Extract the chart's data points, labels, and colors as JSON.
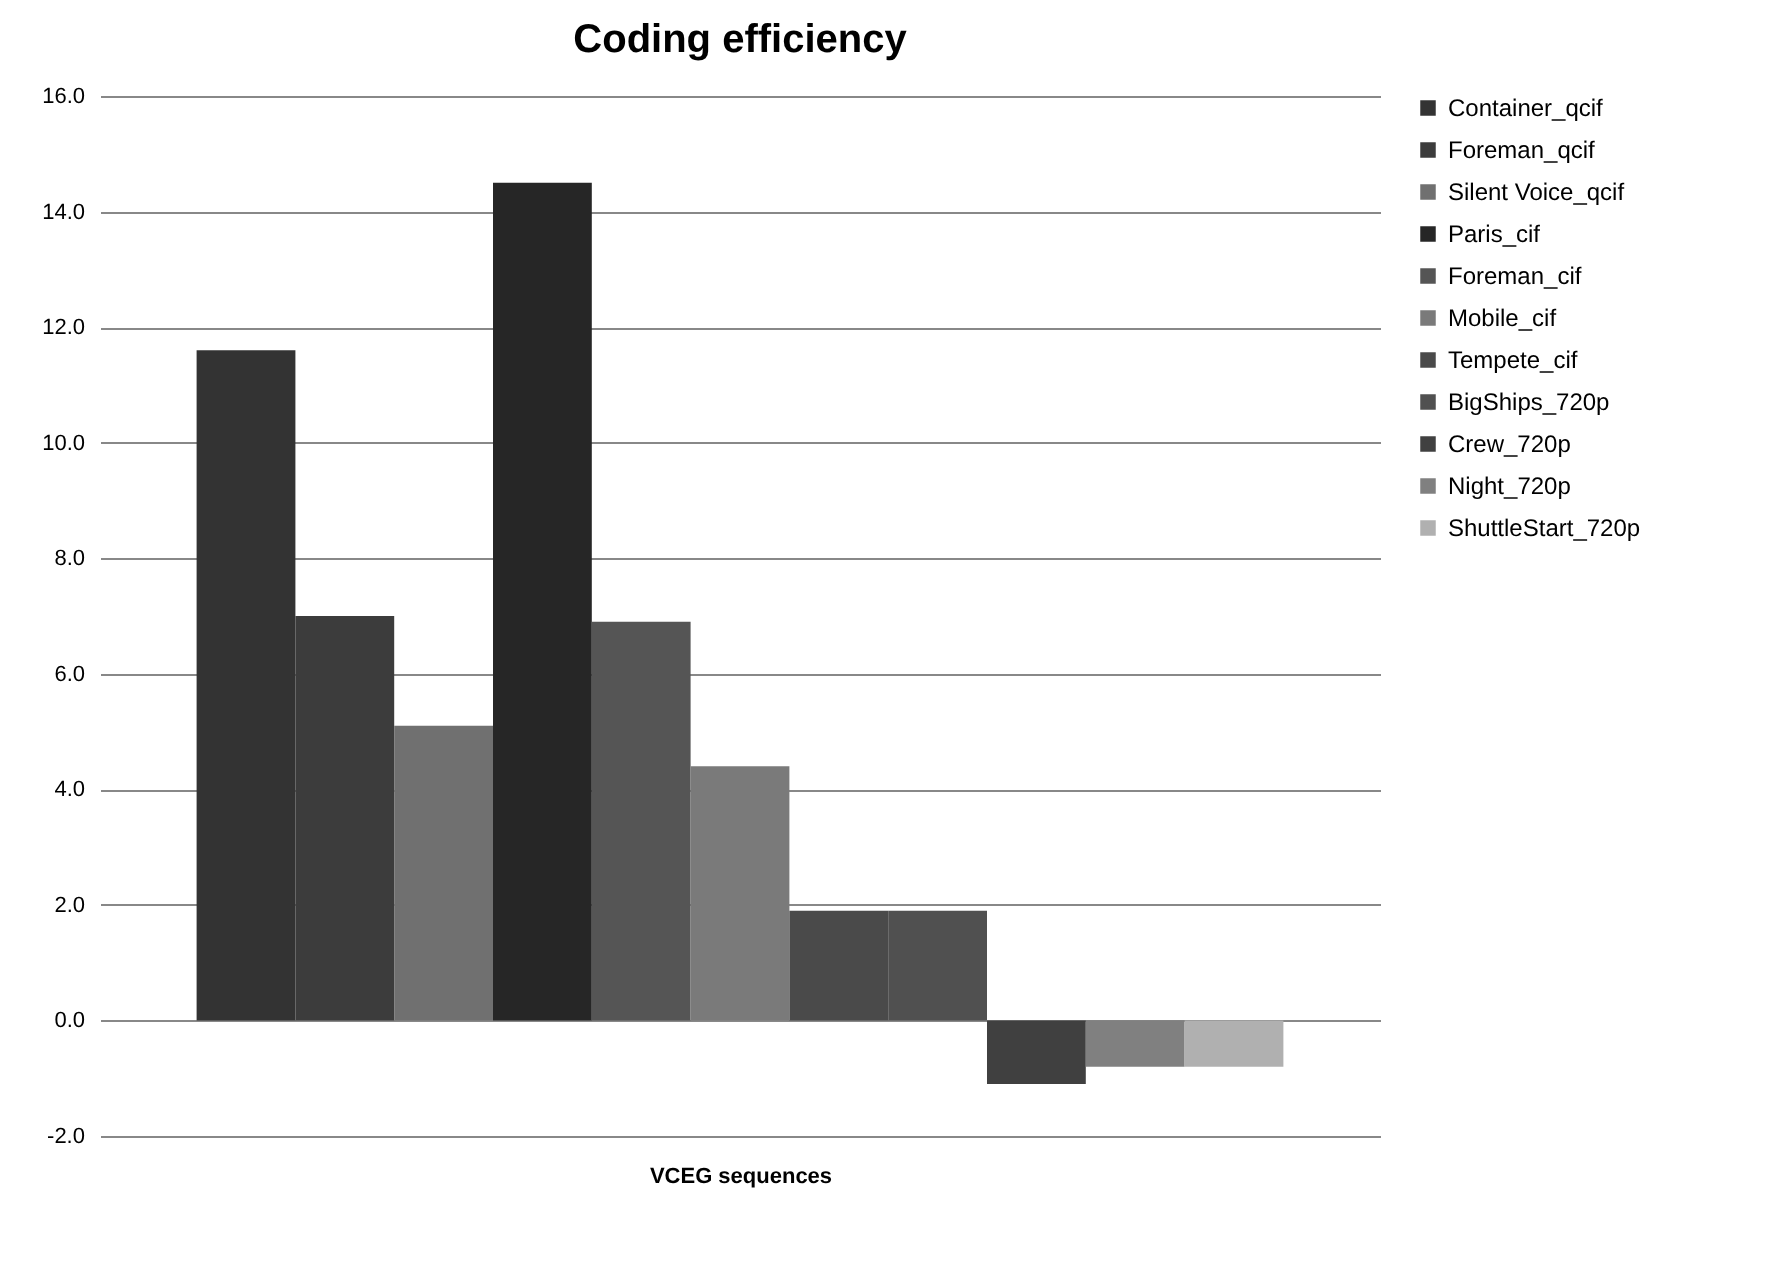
{
  "chart_data": {
    "type": "bar",
    "title": "Coding efficiency",
    "xlabel": "VCEG sequences",
    "categories": [
      null
    ],
    "series": [
      {
        "name": "Container_qcif",
        "color": "#333333",
        "values": [
          11.6
        ]
      },
      {
        "name": "Foreman_qcif",
        "color": "#3c3c3c",
        "values": [
          7.0
        ]
      },
      {
        "name": "Silent Voice_qcif",
        "color": "#707070",
        "values": [
          5.1
        ]
      },
      {
        "name": "Paris_cif",
        "color": "#262626",
        "values": [
          14.5
        ]
      },
      {
        "name": "Foreman_cif",
        "color": "#555555",
        "values": [
          6.9
        ]
      },
      {
        "name": "Mobile_cif",
        "color": "#7a7a7a",
        "values": [
          4.4
        ]
      },
      {
        "name": "Tempete_cif",
        "color": "#4a4a4a",
        "values": [
          1.9
        ]
      },
      {
        "name": "BigShips_720p",
        "color": "#505050",
        "values": [
          1.9
        ]
      },
      {
        "name": "Crew_720p",
        "color": "#404040",
        "values": [
          -1.1
        ]
      },
      {
        "name": "Night_720p",
        "color": "#808080",
        "values": [
          -0.8
        ]
      },
      {
        "name": "ShuttleStart_720p",
        "color": "#b0b0b0",
        "values": [
          -0.8
        ]
      }
    ],
    "ylim": [
      -2,
      16
    ],
    "yticks": [
      {
        "value": -2,
        "label": "-2.0"
      },
      {
        "value": 0,
        "label": "0.0"
      },
      {
        "value": 2,
        "label": "2.0"
      },
      {
        "value": 4,
        "label": "4.0"
      },
      {
        "value": 6,
        "label": "6.0"
      },
      {
        "value": 8,
        "label": "8.0"
      },
      {
        "value": 10,
        "label": "10.0"
      },
      {
        "value": 12,
        "label": "12.0"
      },
      {
        "value": 14,
        "label": "14.0"
      },
      {
        "value": 16,
        "label": "16.0"
      }
    ],
    "grid": "y",
    "legend": "right"
  }
}
